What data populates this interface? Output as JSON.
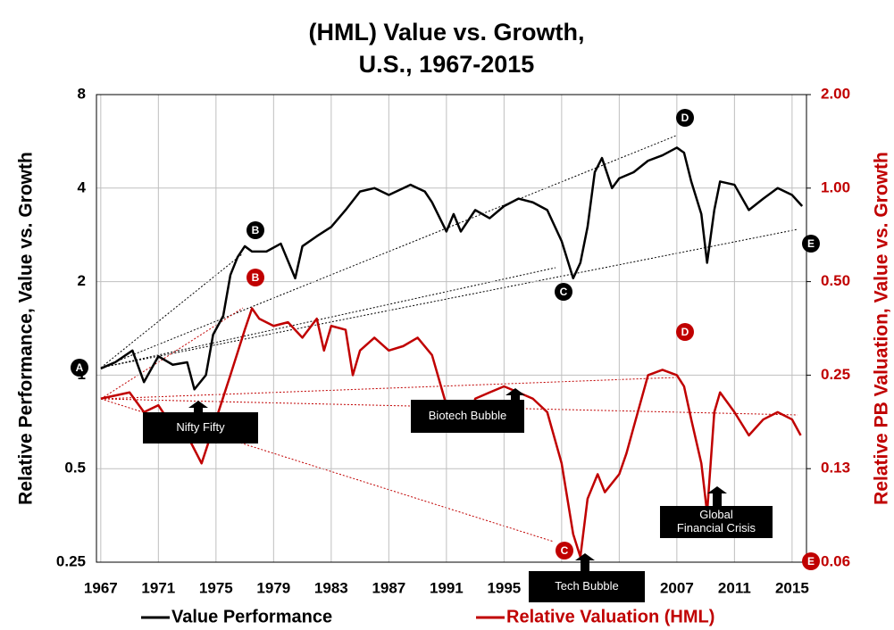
{
  "chart_data": {
    "type": "line",
    "title": [
      "(HML) Value vs. Growth,",
      "U.S., 1967-2015"
    ],
    "y_label": "Relative Performance, Value vs. Growth",
    "y2_label": "Relative PB Valuation, Value vs. Growth",
    "xlim": [
      1966.7,
      2016
    ],
    "xticks": [
      1967,
      1971,
      1975,
      1979,
      1983,
      1987,
      1991,
      1995,
      1999,
      2003,
      2007,
      2011,
      2015
    ],
    "ylim": [
      0.25,
      8
    ],
    "yticks": [
      0.25,
      0.5,
      1,
      2,
      4,
      8
    ],
    "log_y": true,
    "y2lim": [
      0.0625,
      2
    ],
    "y2ticks": [
      {
        "value": 0.0625,
        "label": "0.06"
      },
      {
        "value": 0.125,
        "label": "0.13"
      },
      0.25,
      {
        "value": 0.5,
        "label": "0.50"
      },
      {
        "value": 1,
        "label": "1.00"
      },
      {
        "value": 2,
        "label": "2.00"
      }
    ],
    "grid": true,
    "series": [
      {
        "name": "Value Performance",
        "color": "#000000",
        "axis": "y",
        "x": [
          1967,
          1968,
          1969.2,
          1970,
          1971,
          1972,
          1973,
          1973.5,
          1974.3,
          1974.8,
          1975.5,
          1976,
          1976.5,
          1977,
          1977.5,
          1978.5,
          1979.5,
          1980.5,
          1981,
          1982,
          1983,
          1984,
          1985,
          1986,
          1987,
          1988.5,
          1989.5,
          1990,
          1991,
          1991.5,
          1992,
          1993,
          1994,
          1995,
          1996,
          1997,
          1998,
          1999,
          1999.8,
          2000.3,
          2000.8,
          2001.3,
          2001.8,
          2002.5,
          2003,
          2004,
          2005,
          2006,
          2007,
          2007.5,
          2008,
          2008.7,
          2009.1,
          2009.6,
          2010,
          2011,
          2012,
          2013,
          2014,
          2015,
          2015.7
        ],
        "values": [
          1.05,
          1.1,
          1.2,
          0.95,
          1.15,
          1.08,
          1.1,
          0.9,
          1.0,
          1.35,
          1.55,
          2.1,
          2.4,
          2.6,
          2.5,
          2.5,
          2.65,
          2.05,
          2.6,
          2.8,
          3.0,
          3.4,
          3.9,
          4.0,
          3.8,
          4.1,
          3.9,
          3.6,
          2.9,
          3.3,
          2.9,
          3.4,
          3.2,
          3.5,
          3.7,
          3.6,
          3.4,
          2.7,
          2.05,
          2.3,
          3.0,
          4.5,
          5.0,
          4.0,
          4.3,
          4.5,
          4.9,
          5.1,
          5.4,
          5.2,
          4.2,
          3.3,
          2.3,
          3.4,
          4.2,
          4.1,
          3.4,
          3.7,
          4.0,
          3.8,
          3.5
        ]
      },
      {
        "name": "Relative Valuation (HML)",
        "color": "#c00000",
        "axis": "y2",
        "x": [
          1967,
          1969,
          1970,
          1971,
          1972,
          1973,
          1974,
          1975,
          1976,
          1977,
          1977.5,
          1978,
          1979,
          1980,
          1981,
          1982,
          1982.5,
          1983,
          1984,
          1984.5,
          1985,
          1986,
          1987,
          1988,
          1989,
          1990,
          1991,
          1991.5,
          1992,
          1992.5,
          1993,
          1994,
          1995,
          1996,
          1997,
          1998,
          1999,
          1999.8,
          2000.3,
          2000.8,
          2001.5,
          2002,
          2003,
          2003.5,
          2004,
          2005,
          2006,
          2007,
          2007.5,
          2008,
          2008.7,
          2009.1,
          2009.6,
          2010,
          2011,
          2012,
          2013,
          2014,
          2015,
          2015.6
        ],
        "values": [
          0.21,
          0.22,
          0.19,
          0.2,
          0.17,
          0.16,
          0.13,
          0.18,
          0.25,
          0.35,
          0.41,
          0.38,
          0.36,
          0.37,
          0.33,
          0.38,
          0.3,
          0.36,
          0.35,
          0.25,
          0.3,
          0.33,
          0.3,
          0.31,
          0.33,
          0.29,
          0.2,
          0.17,
          0.2,
          0.17,
          0.21,
          0.22,
          0.23,
          0.22,
          0.21,
          0.19,
          0.13,
          0.077,
          0.065,
          0.1,
          0.12,
          0.105,
          0.12,
          0.14,
          0.17,
          0.25,
          0.26,
          0.25,
          0.23,
          0.18,
          0.13,
          0.09,
          0.19,
          0.22,
          0.19,
          0.16,
          0.18,
          0.19,
          0.18,
          0.16
        ]
      }
    ],
    "point_labels": [
      "A",
      "B",
      "C",
      "D",
      "E"
    ],
    "annotations": [
      "Nifty Fifty",
      "Biotech Bubble",
      "Tech Bubble",
      [
        "Global",
        "Financial Crisis"
      ]
    ]
  }
}
